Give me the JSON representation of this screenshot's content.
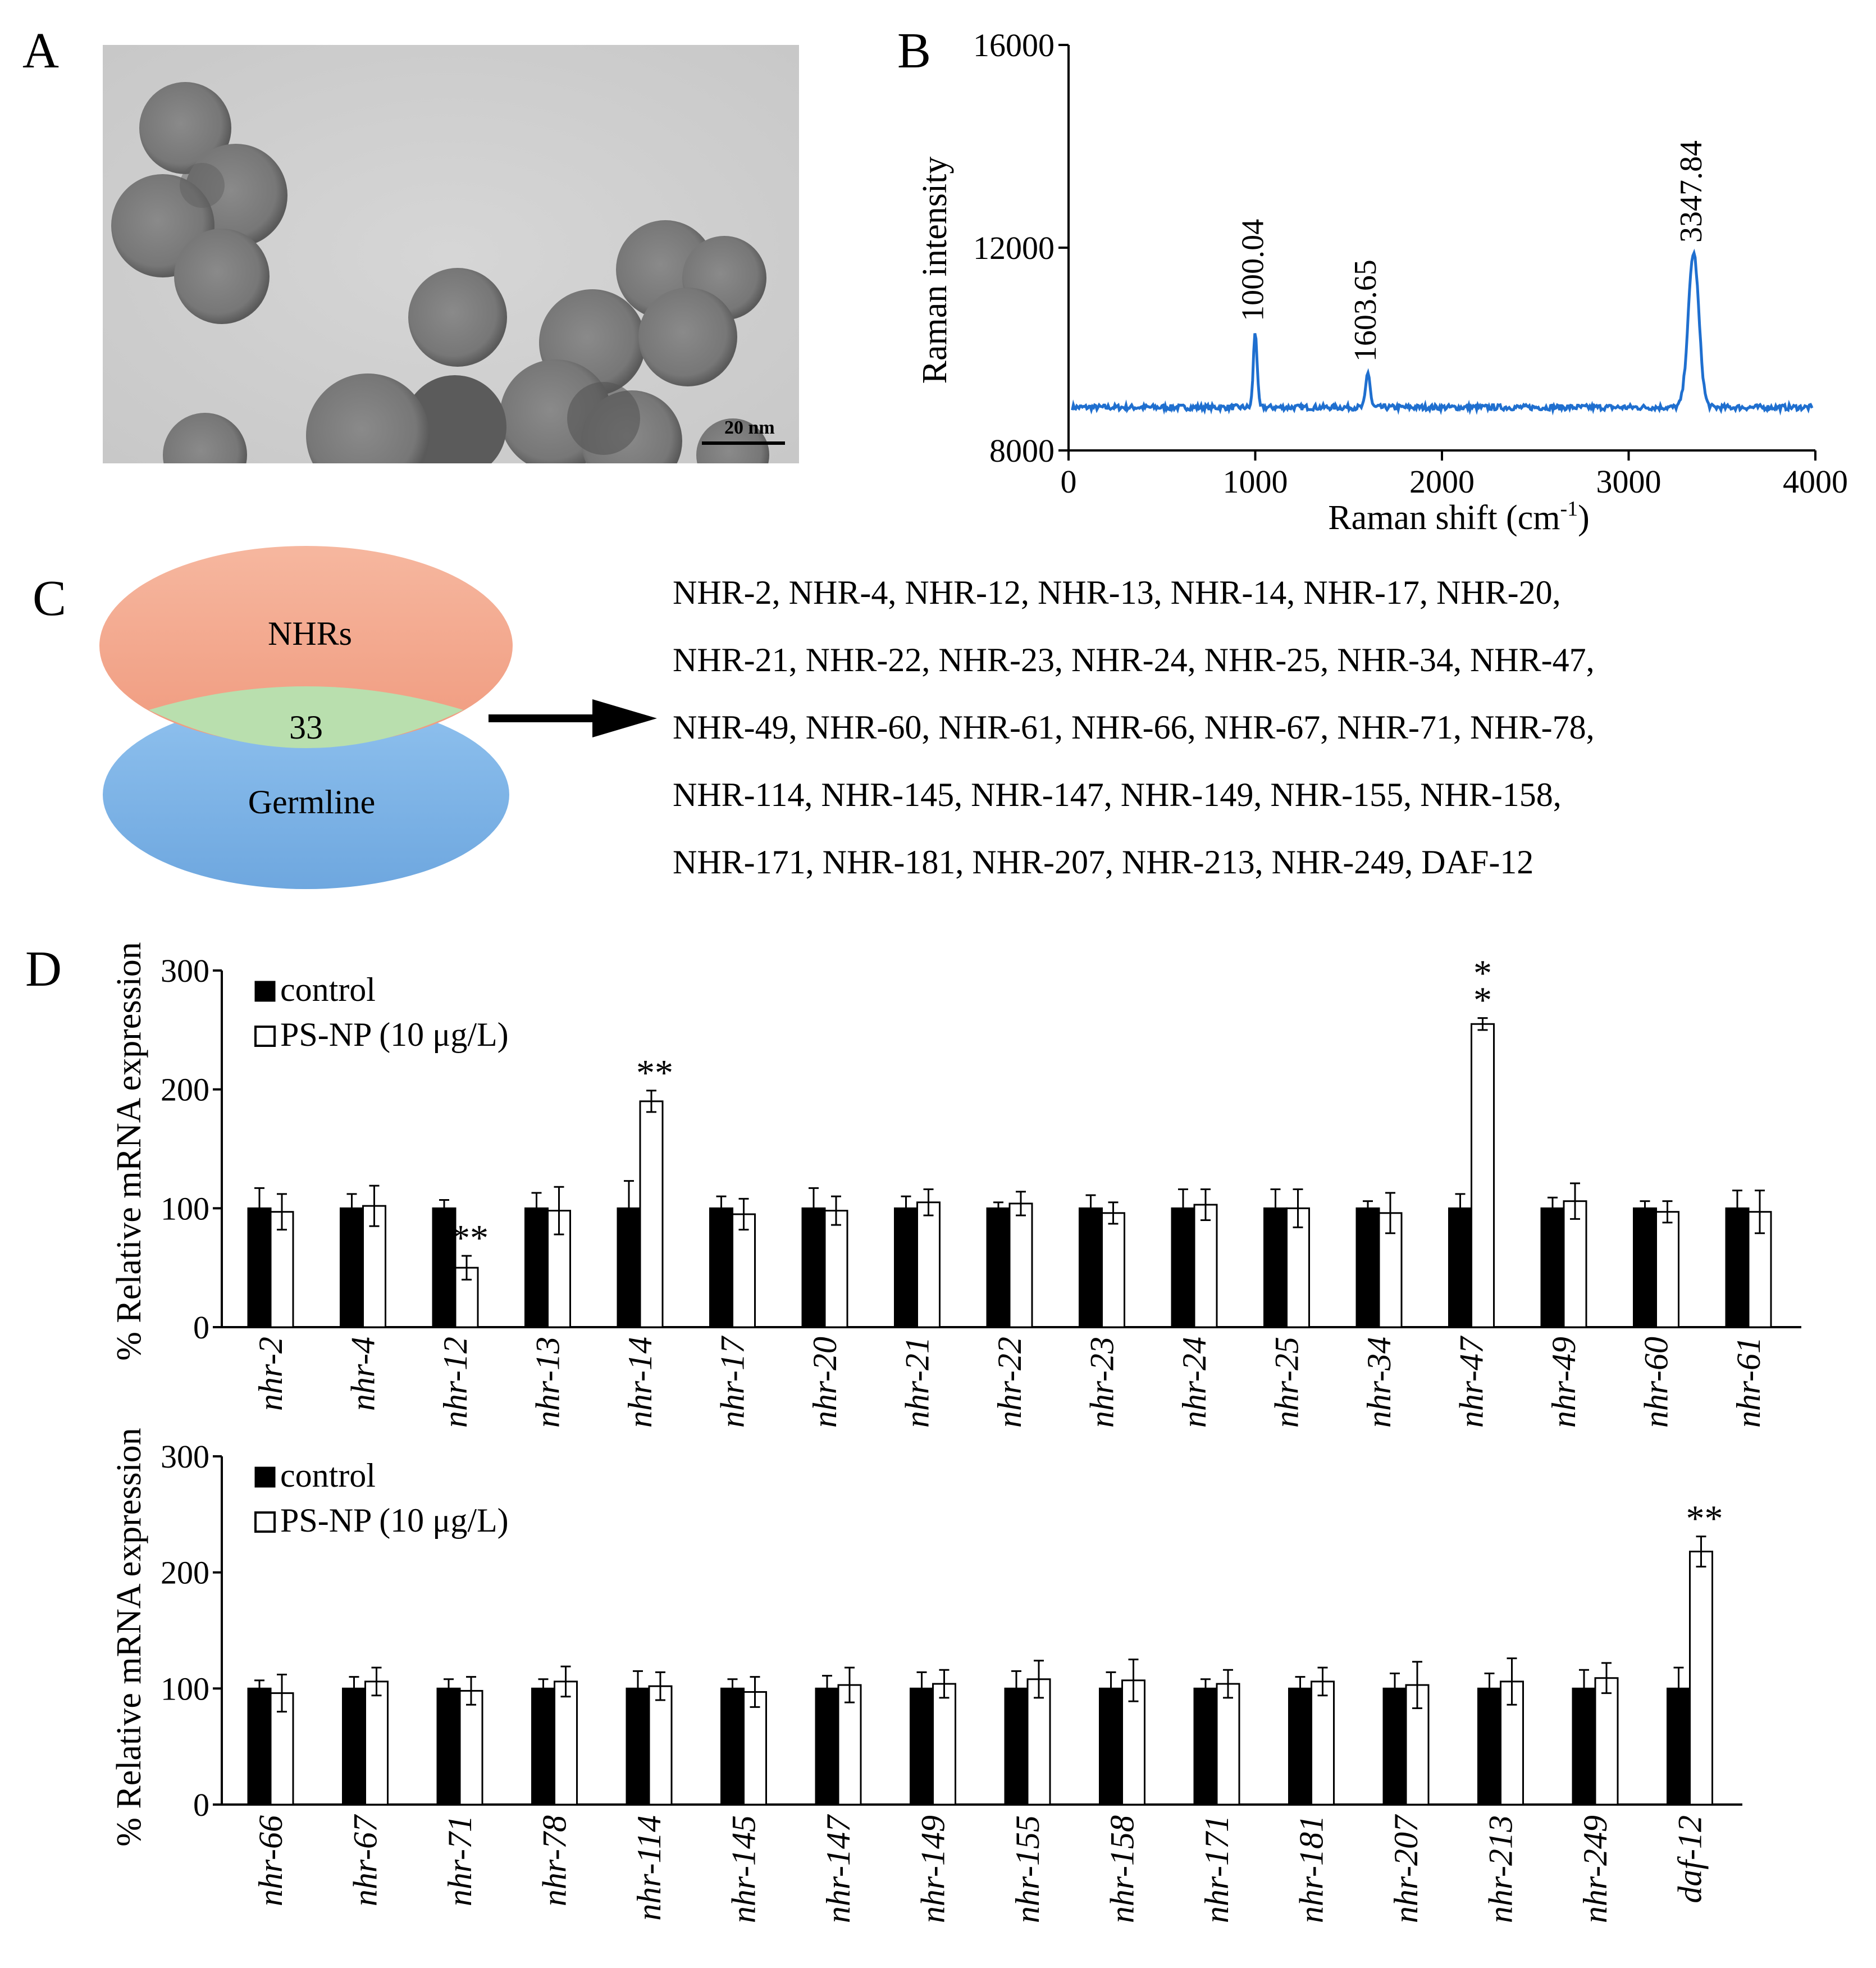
{
  "panels": {
    "A": {
      "letter": "A",
      "scale_bar_label": "20 nm"
    },
    "B": {
      "letter": "B"
    },
    "C": {
      "letter": "C",
      "venn": {
        "top_label": "NHRs",
        "bottom_label": "Germline",
        "overlap_count": "33",
        "colors": {
          "top": "#f3a58b",
          "bottom": "#7fb3e6",
          "overlap": "#b9dfae"
        }
      },
      "gene_lines": [
        "NHR-2, NHR-4, NHR-12, NHR-13, NHR-14, NHR-17, NHR-20,",
        "NHR-21, NHR-22, NHR-23, NHR-24, NHR-25, NHR-34, NHR-47,",
        "NHR-49, NHR-60, NHR-61, NHR-66, NHR-67, NHR-71, NHR-78,",
        "NHR-114, NHR-145, NHR-147, NHR-149, NHR-155, NHR-158,",
        "NHR-171, NHR-181, NHR-207, NHR-213, NHR-249, DAF-12"
      ]
    },
    "D": {
      "letter": "D"
    }
  },
  "chart_data": [
    {
      "id": "B",
      "type": "line",
      "xlabel": "Raman shift (cm",
      "xlabel_sup": "-1",
      "xlabel_end": ")",
      "ylabel": "Raman intensity",
      "xlim": [
        0,
        4000
      ],
      "ylim": [
        8000,
        16000
      ],
      "xticks": [
        0,
        1000,
        2000,
        3000,
        4000
      ],
      "yticks": [
        8000,
        12000,
        16000
      ],
      "line_color": "#1f6fcf",
      "baseline": 8850,
      "peaks": [
        {
          "x": 1000.04,
          "y": 10350,
          "width": 14,
          "label": "1000.04"
        },
        {
          "x": 1603.65,
          "y": 9550,
          "width": 16,
          "label": "1603.65"
        },
        {
          "x": 3347.84,
          "y": 11900,
          "width": 40,
          "label": "3347.84"
        }
      ]
    },
    {
      "id": "D1",
      "type": "bar",
      "ylabel": "% Relative  mRNA expression",
      "ylim": [
        0,
        300
      ],
      "yticks": [
        0,
        100,
        200,
        300
      ],
      "legend": [
        "control",
        "PS-NP (10 μg/L)"
      ],
      "legend_position": "top-left",
      "categories": [
        "nhr-2",
        "nhr-4",
        "nhr-12",
        "nhr-13",
        "nhr-14",
        "nhr-17",
        "nhr-20",
        "nhr-21",
        "nhr-22",
        "nhr-23",
        "nhr-24",
        "nhr-25",
        "nhr-34",
        "nhr-47",
        "nhr-49",
        "nhr-60",
        "nhr-61"
      ],
      "series": [
        {
          "name": "control",
          "color": "#000000",
          "values": [
            100,
            100,
            100,
            100,
            100,
            100,
            100,
            100,
            100,
            100,
            100,
            100,
            100,
            100,
            100,
            100,
            100
          ],
          "errors": [
            17,
            12,
            7,
            13,
            23,
            10,
            17,
            10,
            5,
            11,
            16,
            16,
            6,
            12,
            9,
            6,
            15
          ]
        },
        {
          "name": "PS-NP (10 μg/L)",
          "color": "#ffffff",
          "values": [
            97,
            102,
            50,
            98,
            190,
            95,
            98,
            105,
            104,
            96,
            103,
            100,
            96,
            255,
            106,
            97,
            97
          ],
          "errors": [
            15,
            17,
            10,
            20,
            9,
            13,
            12,
            11,
            10,
            9,
            13,
            16,
            17,
            5,
            15,
            9,
            18
          ]
        }
      ],
      "significance": {
        "nhr-12": "**",
        "nhr-14": "**",
        "nhr-47": "**"
      }
    },
    {
      "id": "D2",
      "type": "bar",
      "ylabel": "% Relative  mRNA expression",
      "ylim": [
        0,
        300
      ],
      "yticks": [
        0,
        100,
        200,
        300
      ],
      "legend": [
        "control",
        "PS-NP (10 μg/L)"
      ],
      "legend_position": "top-left",
      "categories": [
        "nhr-66",
        "nhr-67",
        "nhr-71",
        "nhr-78",
        "nhr-114",
        "nhr-145",
        "nhr-147",
        "nhr-149",
        "nhr-155",
        "nhr-158",
        "nhr-171",
        "nhr-181",
        "nhr-207",
        "nhr-213",
        "nhr-249",
        "daf-12"
      ],
      "series": [
        {
          "name": "control",
          "color": "#000000",
          "values": [
            100,
            100,
            100,
            100,
            100,
            100,
            100,
            100,
            100,
            100,
            100,
            100,
            100,
            100,
            100,
            100
          ],
          "errors": [
            7,
            10,
            8,
            8,
            15,
            8,
            11,
            14,
            15,
            14,
            8,
            10,
            13,
            13,
            16,
            18
          ]
        },
        {
          "name": "PS-NP (10 μg/L)",
          "color": "#ffffff",
          "values": [
            96,
            106,
            98,
            106,
            102,
            97,
            103,
            104,
            108,
            107,
            104,
            106,
            103,
            106,
            109,
            218
          ],
          "errors": [
            16,
            12,
            12,
            13,
            12,
            13,
            15,
            12,
            16,
            18,
            12,
            12,
            20,
            20,
            13,
            13
          ]
        }
      ],
      "significance": {
        "daf-12": "**"
      }
    }
  ]
}
